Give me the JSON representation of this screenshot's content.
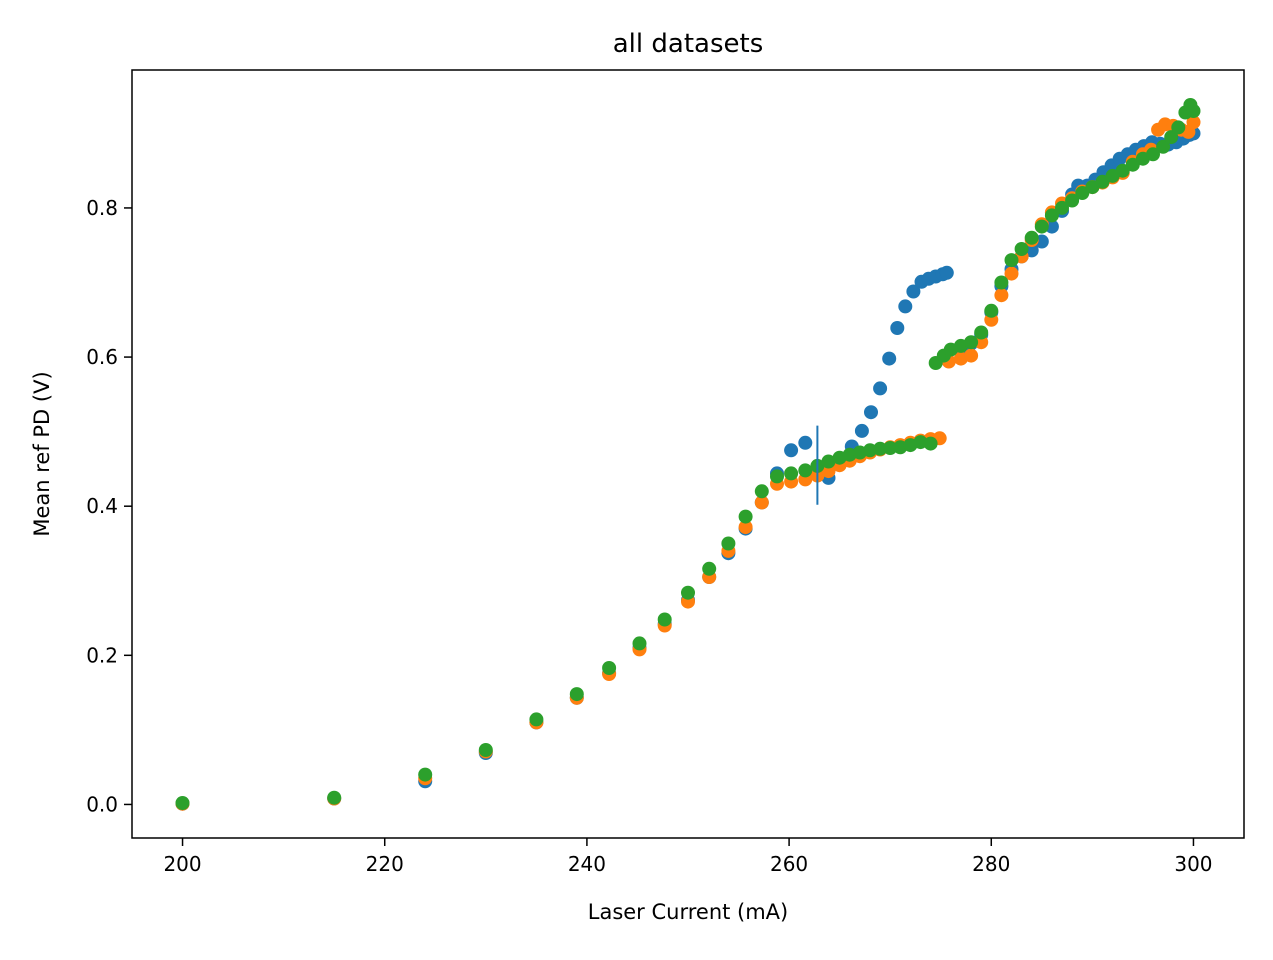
{
  "chart_data": {
    "type": "scatter",
    "title": "all datasets",
    "xlabel": "Laser Current (mA)",
    "ylabel": "Mean ref PD (V)",
    "xlim": [
      195,
      305
    ],
    "ylim": [
      -0.045,
      0.985
    ],
    "xticks": [
      200,
      220,
      240,
      260,
      280,
      300
    ],
    "yticks": [
      0.0,
      0.2,
      0.4,
      0.6,
      0.8
    ],
    "xtick_labels": [
      "200",
      "220",
      "240",
      "260",
      "280",
      "300"
    ],
    "ytick_labels": [
      "0.0",
      "0.2",
      "0.4",
      "0.6",
      "0.8"
    ],
    "grid": false,
    "legend": "none",
    "colors": [
      "#1f77b4",
      "#ff7f0e",
      "#2ca02c"
    ],
    "annotations": [
      {
        "type": "vline",
        "x": 262.8,
        "y_from": 0.402,
        "y_to": 0.508,
        "color": "#1f77b4"
      }
    ],
    "series": [
      {
        "color": "#1f77b4",
        "points": [
          [
            200,
            0.001
          ],
          [
            215,
            0.008
          ],
          [
            224,
            0.031
          ],
          [
            230,
            0.069
          ],
          [
            235,
            0.11
          ],
          [
            239,
            0.143
          ],
          [
            242.2,
            0.176
          ],
          [
            245.2,
            0.21
          ],
          [
            247.7,
            0.242
          ],
          [
            250,
            0.274
          ],
          [
            252.1,
            0.305
          ],
          [
            254,
            0.337
          ],
          [
            255.7,
            0.37
          ],
          [
            257.3,
            0.405
          ],
          [
            258.8,
            0.444
          ],
          [
            260.2,
            0.475
          ],
          [
            261.6,
            0.485
          ],
          [
            263.9,
            0.438
          ],
          [
            265.2,
            0.46
          ],
          [
            266.2,
            0.48
          ],
          [
            267.2,
            0.501
          ],
          [
            268.1,
            0.526
          ],
          [
            269,
            0.558
          ],
          [
            269.9,
            0.598
          ],
          [
            270.7,
            0.639
          ],
          [
            271.5,
            0.668
          ],
          [
            272.3,
            0.688
          ],
          [
            273.1,
            0.701
          ],
          [
            273.8,
            0.705
          ],
          [
            274.5,
            0.708
          ],
          [
            275.2,
            0.711
          ],
          [
            275.6,
            0.713
          ],
          [
            277,
            0.61
          ],
          [
            278,
            0.618
          ],
          [
            279,
            0.63
          ],
          [
            280,
            0.66
          ],
          [
            281,
            0.695
          ],
          [
            282,
            0.718
          ],
          [
            283,
            0.735
          ],
          [
            284,
            0.743
          ],
          [
            285,
            0.755
          ],
          [
            286,
            0.775
          ],
          [
            287,
            0.796
          ],
          [
            288,
            0.818
          ],
          [
            288.6,
            0.83
          ],
          [
            289.5,
            0.83
          ],
          [
            290.3,
            0.838
          ],
          [
            291.1,
            0.848
          ],
          [
            291.9,
            0.857
          ],
          [
            292.7,
            0.866
          ],
          [
            293.5,
            0.872
          ],
          [
            294.3,
            0.878
          ],
          [
            295.1,
            0.883
          ],
          [
            295.9,
            0.888
          ],
          [
            296.7,
            0.886
          ],
          [
            297.5,
            0.885
          ],
          [
            298.3,
            0.888
          ],
          [
            299,
            0.893
          ],
          [
            299.6,
            0.898
          ],
          [
            300,
            0.9
          ]
        ]
      },
      {
        "color": "#ff7f0e",
        "points": [
          [
            200,
            0.001
          ],
          [
            215,
            0.008
          ],
          [
            224,
            0.035
          ],
          [
            230,
            0.071
          ],
          [
            235,
            0.11
          ],
          [
            239,
            0.143
          ],
          [
            242.2,
            0.175
          ],
          [
            245.2,
            0.208
          ],
          [
            247.7,
            0.24
          ],
          [
            250,
            0.272
          ],
          [
            252.1,
            0.305
          ],
          [
            254,
            0.34
          ],
          [
            255.7,
            0.372
          ],
          [
            257.3,
            0.405
          ],
          [
            258.8,
            0.43
          ],
          [
            260.2,
            0.433
          ],
          [
            261.6,
            0.436
          ],
          [
            262.8,
            0.441
          ],
          [
            263.9,
            0.447
          ],
          [
            265,
            0.455
          ],
          [
            266,
            0.461
          ],
          [
            267,
            0.467
          ],
          [
            268,
            0.472
          ],
          [
            269,
            0.476
          ],
          [
            270,
            0.479
          ],
          [
            271,
            0.482
          ],
          [
            272,
            0.485
          ],
          [
            273,
            0.488
          ],
          [
            274,
            0.49
          ],
          [
            274.9,
            0.491
          ],
          [
            275.8,
            0.594
          ],
          [
            277,
            0.598
          ],
          [
            278,
            0.602
          ],
          [
            279,
            0.62
          ],
          [
            280,
            0.65
          ],
          [
            281,
            0.683
          ],
          [
            282,
            0.712
          ],
          [
            283,
            0.735
          ],
          [
            284,
            0.757
          ],
          [
            285,
            0.778
          ],
          [
            286,
            0.794
          ],
          [
            287,
            0.806
          ],
          [
            288,
            0.813
          ],
          [
            289,
            0.822
          ],
          [
            290,
            0.828
          ],
          [
            291,
            0.834
          ],
          [
            292,
            0.841
          ],
          [
            293,
            0.847
          ],
          [
            294,
            0.862
          ],
          [
            295,
            0.872
          ],
          [
            295.8,
            0.878
          ],
          [
            296.5,
            0.905
          ],
          [
            297.2,
            0.912
          ],
          [
            298,
            0.91
          ],
          [
            298.8,
            0.905
          ],
          [
            299.5,
            0.902
          ],
          [
            300,
            0.915
          ]
        ]
      },
      {
        "color": "#2ca02c",
        "points": [
          [
            200,
            0.002
          ],
          [
            215,
            0.009
          ],
          [
            224,
            0.04
          ],
          [
            230,
            0.073
          ],
          [
            235,
            0.114
          ],
          [
            239,
            0.148
          ],
          [
            242.2,
            0.183
          ],
          [
            245.2,
            0.216
          ],
          [
            247.7,
            0.248
          ],
          [
            250,
            0.284
          ],
          [
            252.1,
            0.316
          ],
          [
            254,
            0.35
          ],
          [
            255.7,
            0.386
          ],
          [
            257.3,
            0.42
          ],
          [
            258.8,
            0.44
          ],
          [
            260.2,
            0.444
          ],
          [
            261.6,
            0.448
          ],
          [
            262.8,
            0.454
          ],
          [
            263.9,
            0.46
          ],
          [
            265,
            0.465
          ],
          [
            266,
            0.469
          ],
          [
            267,
            0.472
          ],
          [
            268,
            0.475
          ],
          [
            269,
            0.477
          ],
          [
            270,
            0.478
          ],
          [
            271,
            0.479
          ],
          [
            272,
            0.482
          ],
          [
            273,
            0.486
          ],
          [
            274,
            0.484
          ],
          [
            274.5,
            0.592
          ],
          [
            275.3,
            0.602
          ],
          [
            276,
            0.61
          ],
          [
            277,
            0.615
          ],
          [
            278,
            0.62
          ],
          [
            279,
            0.633
          ],
          [
            280,
            0.662
          ],
          [
            281,
            0.7
          ],
          [
            282,
            0.73
          ],
          [
            283,
            0.745
          ],
          [
            284,
            0.76
          ],
          [
            285,
            0.775
          ],
          [
            286,
            0.79
          ],
          [
            287,
            0.8
          ],
          [
            288,
            0.81
          ],
          [
            289,
            0.82
          ],
          [
            290,
            0.828
          ],
          [
            291,
            0.835
          ],
          [
            292,
            0.843
          ],
          [
            293,
            0.85
          ],
          [
            294,
            0.858
          ],
          [
            295,
            0.866
          ],
          [
            296,
            0.872
          ],
          [
            297,
            0.882
          ],
          [
            297.8,
            0.895
          ],
          [
            298.5,
            0.908
          ],
          [
            299.2,
            0.928
          ],
          [
            299.7,
            0.938
          ],
          [
            300,
            0.93
          ]
        ]
      }
    ]
  }
}
